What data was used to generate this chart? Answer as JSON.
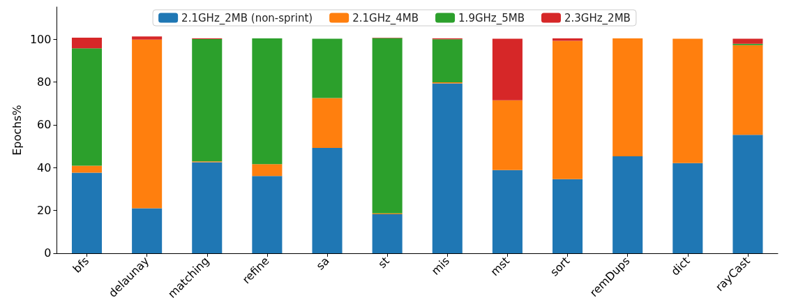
{
  "chart_data": {
    "type": "bar",
    "stacked": true,
    "ylabel": "Epochs%",
    "categories": [
      "bfs",
      "delaunay",
      "matching",
      "refine",
      "sa",
      "st",
      "mis",
      "mst",
      "sort",
      "remDups",
      "dict",
      "rayCast"
    ],
    "series": [
      {
        "name": "2.1GHz_2MB (non-sprint)",
        "color": "#1f77b4",
        "values": [
          37.6,
          21.0,
          42.5,
          36.1,
          49.2,
          18.2,
          79.3,
          38.8,
          34.6,
          45.3,
          42.1,
          55.3
        ]
      },
      {
        "name": "2.1GHz_4MB",
        "color": "#ff7f0e",
        "values": [
          3.3,
          78.8,
          0.4,
          5.5,
          23.3,
          0.4,
          0.5,
          32.6,
          64.6,
          55.0,
          58.1,
          41.9
        ]
      },
      {
        "name": "1.9GHz_5MB",
        "color": "#2ca02c",
        "values": [
          54.8,
          0,
          57.1,
          58.7,
          27.7,
          81.9,
          20.1,
          0,
          0,
          0,
          0,
          0.6
        ]
      },
      {
        "name": "2.3GHz_2MB",
        "color": "#d62728",
        "values": [
          5.0,
          1.4,
          0.3,
          0,
          0,
          0.2,
          0.4,
          28.8,
          1.1,
          0,
          0,
          2.4
        ]
      }
    ],
    "ylim": [
      0,
      115
    ],
    "yticks": [
      0,
      20,
      40,
      60,
      80,
      100
    ],
    "grid": false,
    "legend": "top"
  }
}
